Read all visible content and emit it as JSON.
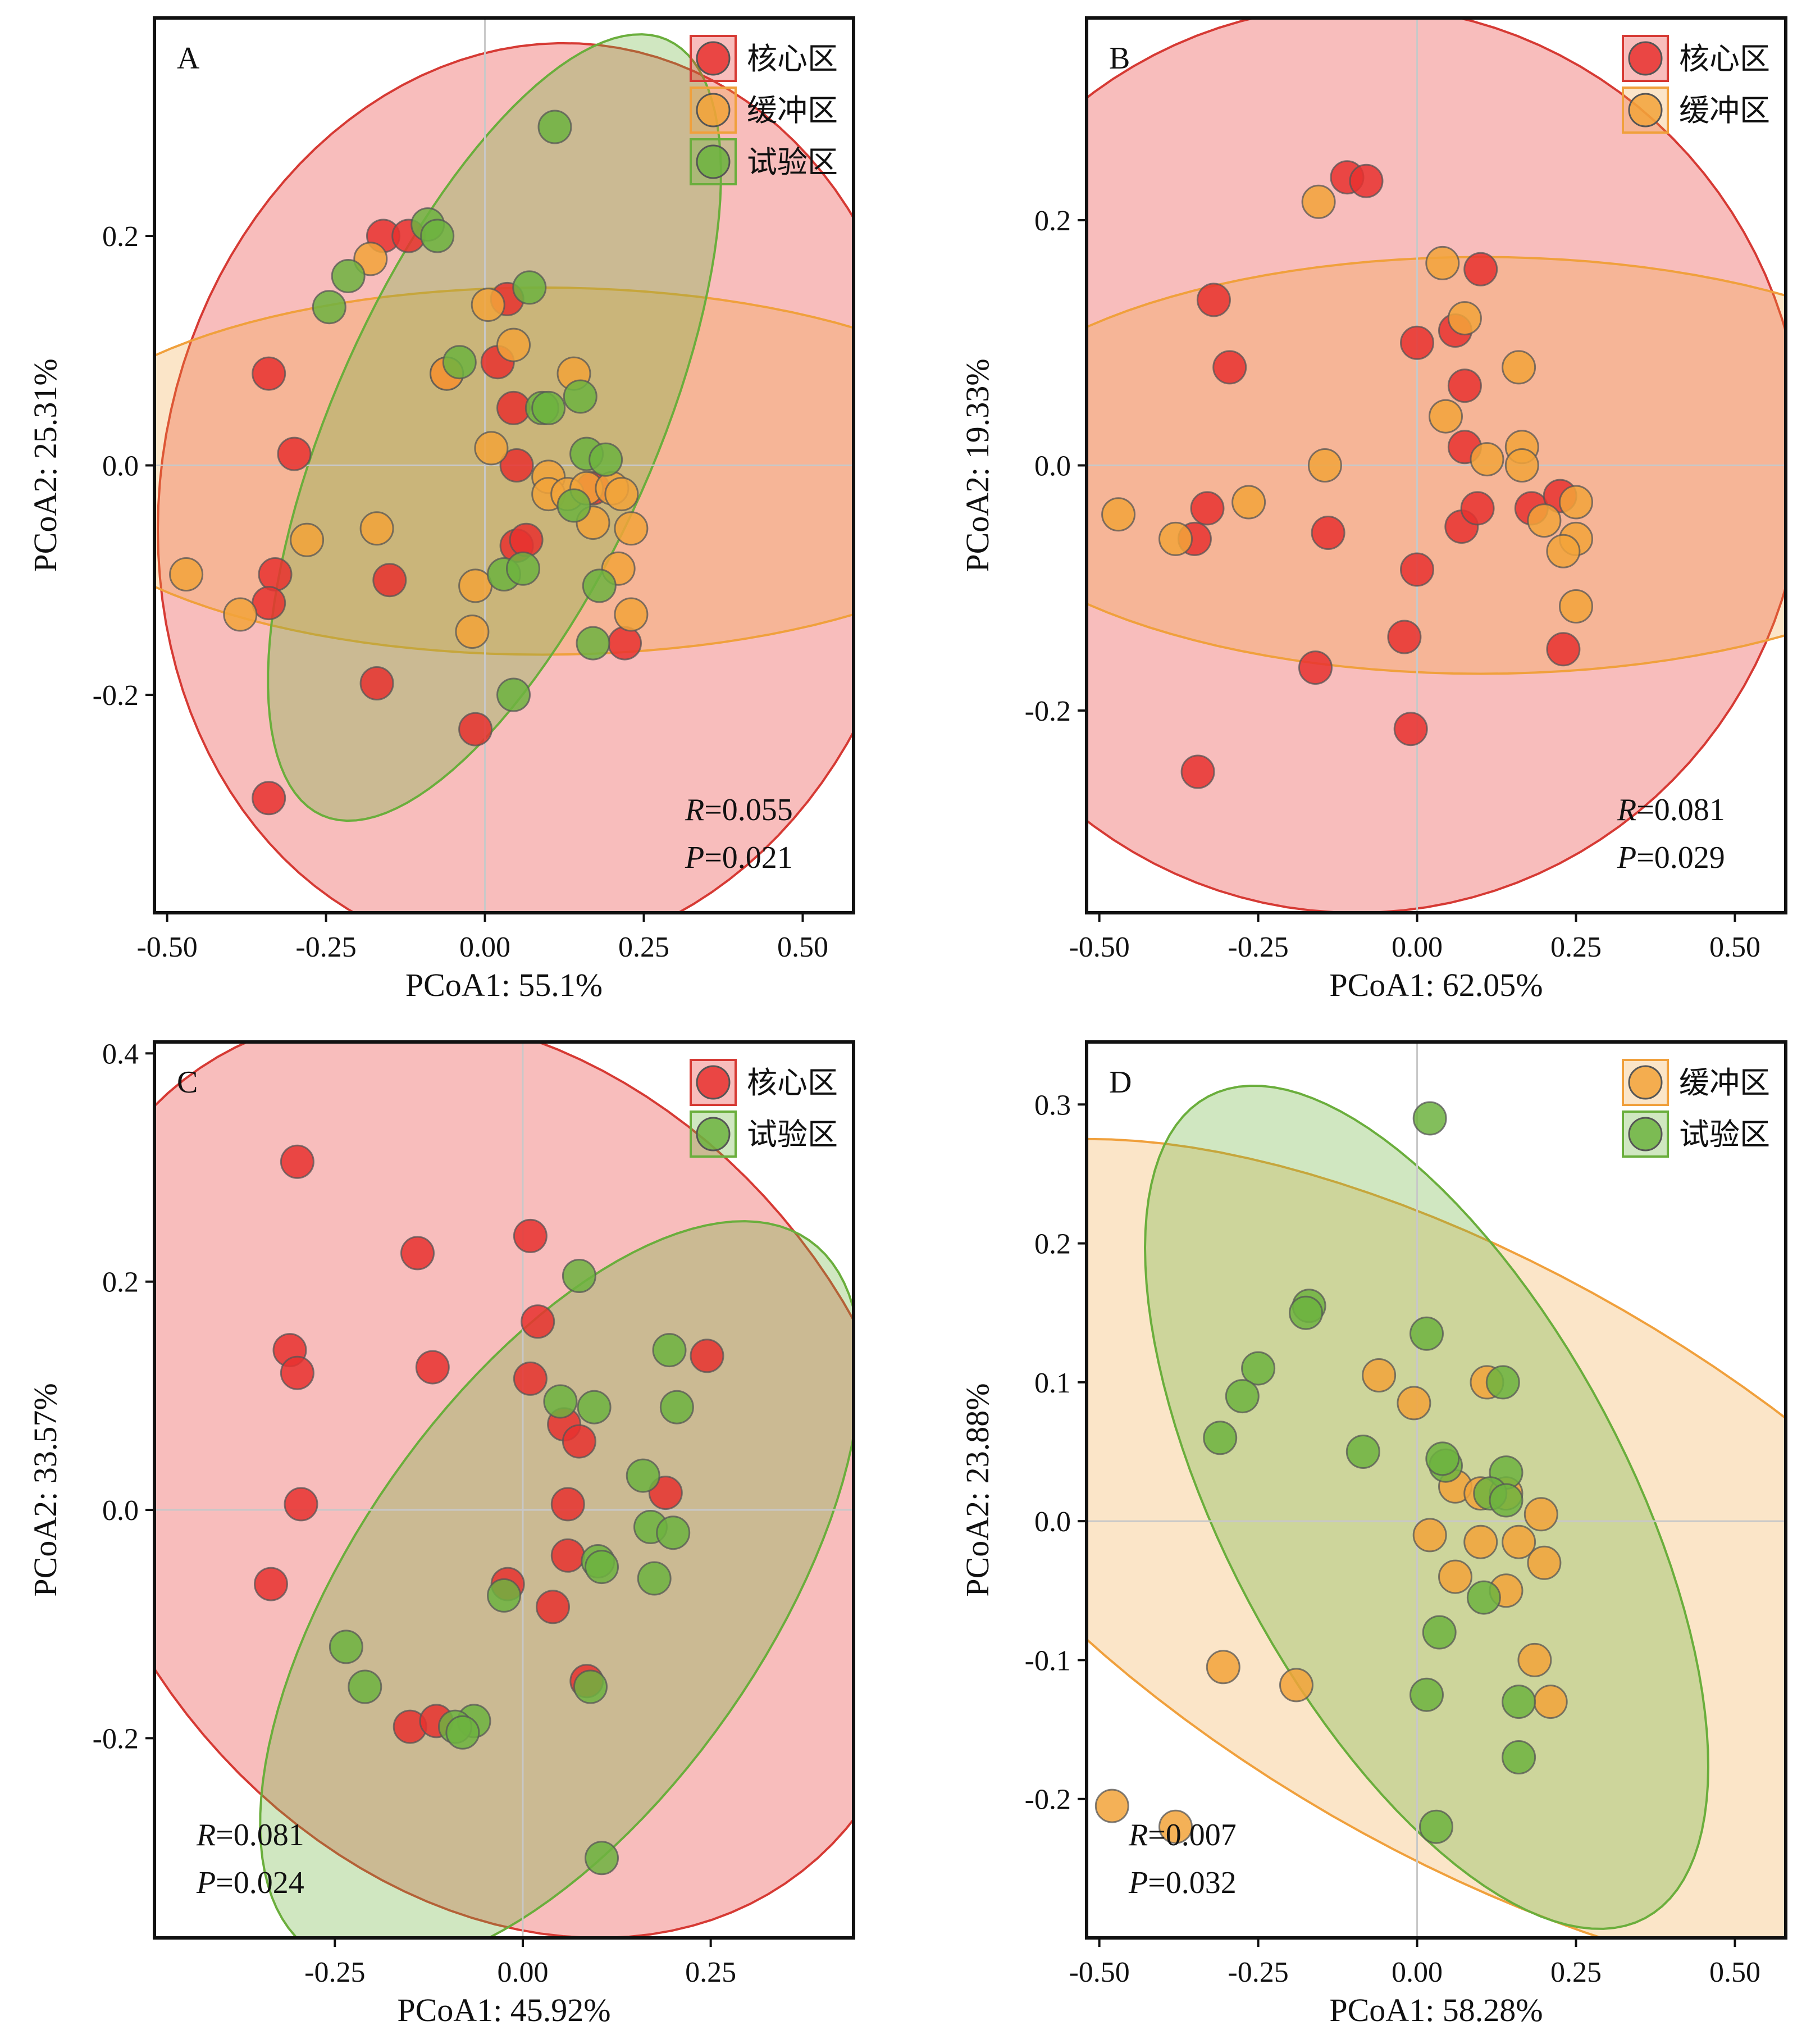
{
  "colors": {
    "core": "#e8312f",
    "buffer": "#f2a33a",
    "test": "#6db33f",
    "core_edge": "#d63a34",
    "buffer_edge": "#f0a03c",
    "test_edge": "#6aae3c"
  },
  "chart_data": [
    {
      "type": "scatter",
      "panel": "A",
      "xlabel": "PCoA1: 55.1%",
      "ylabel": "PCoA2: 25.31%",
      "xlim": [
        -0.52,
        0.58
      ],
      "ylim": [
        -0.39,
        0.39
      ],
      "xticks": [
        -0.5,
        -0.25,
        0.0,
        0.25,
        0.5
      ],
      "xtick_labels": [
        "-0.50",
        "-0.25",
        "0.00",
        "0.25",
        "0.50"
      ],
      "yticks": [
        -0.2,
        0.0,
        0.2
      ],
      "ytick_labels": [
        "-0.2",
        "0.0",
        "0.2"
      ],
      "legend_position": "top-right",
      "stats": {
        "R": "0.055",
        "P": "0.021"
      },
      "stats_position": "bottom-right",
      "ellipses": [
        {
          "group": "core",
          "cx": 0.085,
          "cy": -0.03,
          "a": 0.4,
          "b": 0.33,
          "angle": 80
        },
        {
          "group": "buffer",
          "cx": 0.09,
          "cy": -0.005,
          "a": 0.435,
          "b": 0.16,
          "angle": 0
        },
        {
          "group": "test",
          "cx": 0.015,
          "cy": 0.033,
          "a": 0.37,
          "b": 0.14,
          "angle": 66
        }
      ],
      "series": [
        {
          "name": "核心区",
          "group": "core",
          "points": [
            [
              -0.34,
              0.08
            ],
            [
              -0.3,
              0.01
            ],
            [
              -0.33,
              -0.095
            ],
            [
              -0.34,
              -0.12
            ],
            [
              -0.34,
              -0.29
            ],
            [
              -0.17,
              -0.19
            ],
            [
              -0.15,
              -0.1
            ],
            [
              -0.015,
              -0.23
            ],
            [
              -0.16,
              0.2
            ],
            [
              -0.12,
              0.2
            ],
            [
              0.02,
              0.09
            ],
            [
              0.045,
              0.05
            ],
            [
              0.05,
              -0.07
            ],
            [
              0.065,
              -0.065
            ],
            [
              0.035,
              0.145
            ],
            [
              0.05,
              0.0
            ],
            [
              0.17,
              -0.02
            ],
            [
              0.22,
              -0.155
            ],
            [
              -0.06,
              0.08
            ]
          ]
        },
        {
          "name": "缓冲区",
          "group": "buffer",
          "points": [
            [
              -0.47,
              -0.095
            ],
            [
              -0.385,
              -0.13
            ],
            [
              -0.28,
              -0.065
            ],
            [
              -0.17,
              -0.055
            ],
            [
              -0.18,
              0.18
            ],
            [
              -0.06,
              0.08
            ],
            [
              0.005,
              0.14
            ],
            [
              0.01,
              0.015
            ],
            [
              0.045,
              0.105
            ],
            [
              0.14,
              0.08
            ],
            [
              0.1,
              -0.01
            ],
            [
              0.1,
              -0.025
            ],
            [
              0.13,
              -0.025
            ],
            [
              0.16,
              -0.02
            ],
            [
              0.17,
              -0.05
            ],
            [
              0.2,
              -0.02
            ],
            [
              0.215,
              -0.025
            ],
            [
              0.23,
              -0.055
            ],
            [
              0.21,
              -0.09
            ],
            [
              0.23,
              -0.13
            ],
            [
              -0.015,
              -0.105
            ],
            [
              -0.02,
              -0.145
            ]
          ]
        },
        {
          "name": "试验区",
          "group": "test",
          "points": [
            [
              0.11,
              0.295
            ],
            [
              -0.09,
              0.21
            ],
            [
              -0.075,
              0.2
            ],
            [
              -0.215,
              0.165
            ],
            [
              -0.245,
              0.138
            ],
            [
              0.07,
              0.155
            ],
            [
              -0.04,
              0.09
            ],
            [
              0.15,
              0.06
            ],
            [
              0.09,
              0.05
            ],
            [
              0.1,
              0.05
            ],
            [
              0.16,
              0.01
            ],
            [
              0.19,
              0.005
            ],
            [
              0.14,
              -0.035
            ],
            [
              0.03,
              -0.095
            ],
            [
              0.06,
              -0.09
            ],
            [
              0.18,
              -0.105
            ],
            [
              0.17,
              -0.155
            ],
            [
              0.045,
              -0.2
            ]
          ]
        }
      ]
    },
    {
      "type": "scatter",
      "panel": "B",
      "xlabel": "PCoA1: 62.05%",
      "ylabel": "PCoA2: 19.33%",
      "xlim": [
        -0.52,
        0.58
      ],
      "ylim": [
        -0.365,
        0.365
      ],
      "xticks": [
        -0.5,
        -0.25,
        0.0,
        0.25,
        0.5
      ],
      "xtick_labels": [
        "-0.50",
        "-0.25",
        "0.00",
        "0.25",
        "0.50"
      ],
      "yticks": [
        -0.2,
        0.0,
        0.2
      ],
      "ytick_labels": [
        "-0.2",
        "0.0",
        "0.2"
      ],
      "legend_position": "top-right",
      "stats": {
        "R": "0.081",
        "P": "0.029"
      },
      "stats_position": "bottom-right",
      "ellipses": [
        {
          "group": "core",
          "cx": -0.095,
          "cy": 0.005,
          "a": 0.37,
          "b": 0.365,
          "angle": 90
        },
        {
          "group": "buffer",
          "cx": 0.1,
          "cy": 0.0,
          "a": 0.43,
          "b": 0.17,
          "angle": 0
        }
      ],
      "series": [
        {
          "name": "核心区",
          "group": "core",
          "points": [
            [
              -0.11,
              0.235
            ],
            [
              -0.08,
              0.232
            ],
            [
              -0.32,
              0.135
            ],
            [
              -0.295,
              0.08
            ],
            [
              0.1,
              0.16
            ],
            [
              0.0,
              0.1
            ],
            [
              0.06,
              0.11
            ],
            [
              0.075,
              0.065
            ],
            [
              0.075,
              0.015
            ],
            [
              -0.33,
              -0.035
            ],
            [
              -0.35,
              -0.06
            ],
            [
              -0.14,
              -0.055
            ],
            [
              0.07,
              -0.05
            ],
            [
              0.095,
              -0.035
            ],
            [
              0.18,
              -0.035
            ],
            [
              0.225,
              -0.025
            ],
            [
              0.0,
              -0.085
            ],
            [
              -0.16,
              -0.165
            ],
            [
              -0.02,
              -0.14
            ],
            [
              -0.01,
              -0.215
            ],
            [
              -0.345,
              -0.25
            ],
            [
              0.23,
              -0.15
            ]
          ]
        },
        {
          "name": "缓冲区",
          "group": "buffer",
          "points": [
            [
              -0.47,
              -0.04
            ],
            [
              -0.38,
              -0.06
            ],
            [
              -0.155,
              0.215
            ],
            [
              0.04,
              0.165
            ],
            [
              0.075,
              0.12
            ],
            [
              0.16,
              0.08
            ],
            [
              0.045,
              0.04
            ],
            [
              0.11,
              0.005
            ],
            [
              0.165,
              0.015
            ],
            [
              0.165,
              0.0
            ],
            [
              -0.145,
              0.0
            ],
            [
              -0.265,
              -0.03
            ],
            [
              0.2,
              -0.045
            ],
            [
              0.25,
              -0.03
            ],
            [
              0.25,
              -0.06
            ],
            [
              0.23,
              -0.07
            ],
            [
              0.25,
              -0.115
            ]
          ]
        }
      ]
    },
    {
      "type": "scatter",
      "panel": "C",
      "xlabel": "PCoA1: 45.92%",
      "ylabel": "PCoA2: 33.57%",
      "xlim": [
        -0.49,
        0.44
      ],
      "ylim": [
        -0.375,
        0.41
      ],
      "xticks": [
        -0.25,
        0.0,
        0.25
      ],
      "xtick_labels": [
        "-0.25",
        "0.00",
        "0.25"
      ],
      "yticks": [
        -0.2,
        0.0,
        0.2,
        0.4
      ],
      "ytick_labels": [
        "-0.2",
        "0.0",
        "0.2",
        "0.4"
      ],
      "legend_position": "top-right",
      "stats": {
        "R": "0.081",
        "P": "0.024"
      },
      "stats_position": "bottom-left",
      "ellipses": [
        {
          "group": "core",
          "cx": -0.04,
          "cy": 0.03,
          "a": 0.44,
          "b": 0.34,
          "angle": -52
        },
        {
          "group": "test",
          "cx": 0.05,
          "cy": -0.075,
          "a": 0.38,
          "b": 0.18,
          "angle": 55
        }
      ],
      "series": [
        {
          "name": "核心区",
          "group": "core",
          "points": [
            [
              -0.3,
              0.305
            ],
            [
              0.01,
              0.24
            ],
            [
              -0.14,
              0.225
            ],
            [
              -0.31,
              0.14
            ],
            [
              -0.3,
              0.12
            ],
            [
              -0.12,
              0.125
            ],
            [
              0.02,
              0.165
            ],
            [
              0.01,
              0.115
            ],
            [
              0.055,
              0.075
            ],
            [
              0.075,
              0.06
            ],
            [
              -0.295,
              0.005
            ],
            [
              0.06,
              0.005
            ],
            [
              0.19,
              0.015
            ],
            [
              0.245,
              0.135
            ],
            [
              -0.335,
              -0.065
            ],
            [
              0.06,
              -0.04
            ],
            [
              0.04,
              -0.085
            ],
            [
              -0.02,
              -0.065
            ],
            [
              -0.15,
              -0.19
            ],
            [
              -0.115,
              -0.185
            ],
            [
              0.085,
              -0.15
            ]
          ]
        },
        {
          "name": "试验区",
          "group": "test",
          "points": [
            [
              0.075,
              0.205
            ],
            [
              0.195,
              0.14
            ],
            [
              0.205,
              0.09
            ],
            [
              0.05,
              0.095
            ],
            [
              0.095,
              0.09
            ],
            [
              0.16,
              0.03
            ],
            [
              0.17,
              -0.015
            ],
            [
              0.2,
              -0.02
            ],
            [
              0.1,
              -0.045
            ],
            [
              0.105,
              -0.05
            ],
            [
              0.175,
              -0.06
            ],
            [
              -0.025,
              -0.075
            ],
            [
              -0.235,
              -0.12
            ],
            [
              -0.21,
              -0.155
            ],
            [
              -0.065,
              -0.185
            ],
            [
              -0.09,
              -0.19
            ],
            [
              -0.08,
              -0.195
            ],
            [
              0.09,
              -0.155
            ],
            [
              0.105,
              -0.305
            ]
          ]
        }
      ]
    },
    {
      "type": "scatter",
      "panel": "D",
      "xlabel": "PCoA1: 58.28%",
      "ylabel": "PCoA2: 23.88%",
      "xlim": [
        -0.52,
        0.58
      ],
      "ylim": [
        -0.3,
        0.345
      ],
      "xticks": [
        -0.5,
        -0.25,
        0.0,
        0.25,
        0.5
      ],
      "xtick_labels": [
        "-0.50",
        "-0.25",
        "0.00",
        "0.25",
        "0.50"
      ],
      "yticks": [
        -0.2,
        -0.1,
        0.0,
        0.1,
        0.2,
        0.3
      ],
      "ytick_labels": [
        "-0.2",
        "-0.1",
        "0.0",
        "0.1",
        "0.2",
        "0.3"
      ],
      "legend_position": "top-right",
      "stats": {
        "R": "0.007",
        "P": "0.032"
      },
      "stats_position": "bottom-left",
      "ellipses": [
        {
          "group": "buffer",
          "cx": 0.095,
          "cy": -0.03,
          "a": 0.49,
          "b": 0.21,
          "angle": -30
        },
        {
          "group": "test",
          "cx": 0.015,
          "cy": 0.01,
          "a": 0.335,
          "b": 0.145,
          "angle": -62
        }
      ],
      "series": [
        {
          "name": "缓冲区",
          "group": "buffer",
          "points": [
            [
              -0.48,
              -0.205
            ],
            [
              -0.38,
              -0.22
            ],
            [
              -0.305,
              -0.105
            ],
            [
              -0.19,
              -0.118
            ],
            [
              -0.06,
              0.105
            ],
            [
              -0.005,
              0.085
            ],
            [
              0.11,
              0.1
            ],
            [
              0.06,
              0.025
            ],
            [
              0.1,
              0.02
            ],
            [
              0.14,
              0.02
            ],
            [
              0.195,
              0.005
            ],
            [
              0.02,
              -0.01
            ],
            [
              0.1,
              -0.015
            ],
            [
              0.16,
              -0.015
            ],
            [
              0.2,
              -0.03
            ],
            [
              0.06,
              -0.04
            ],
            [
              0.14,
              -0.05
            ],
            [
              0.185,
              -0.1
            ],
            [
              0.21,
              -0.13
            ]
          ]
        },
        {
          "name": "试验区",
          "group": "test",
          "points": [
            [
              0.02,
              0.29
            ],
            [
              -0.17,
              0.155
            ],
            [
              -0.175,
              0.15
            ],
            [
              -0.25,
              0.11
            ],
            [
              -0.275,
              0.09
            ],
            [
              -0.31,
              0.06
            ],
            [
              0.015,
              0.135
            ],
            [
              0.135,
              0.1
            ],
            [
              -0.085,
              0.05
            ],
            [
              0.045,
              0.04
            ],
            [
              0.04,
              0.045
            ],
            [
              0.14,
              0.035
            ],
            [
              0.115,
              0.02
            ],
            [
              0.14,
              0.015
            ],
            [
              0.105,
              -0.055
            ],
            [
              0.035,
              -0.08
            ],
            [
              0.015,
              -0.125
            ],
            [
              0.16,
              -0.13
            ],
            [
              0.16,
              -0.17
            ],
            [
              0.03,
              -0.22
            ]
          ]
        }
      ]
    }
  ],
  "legend_labels": {
    "core": "核心区",
    "buffer": "缓冲区",
    "test": "试验区"
  }
}
